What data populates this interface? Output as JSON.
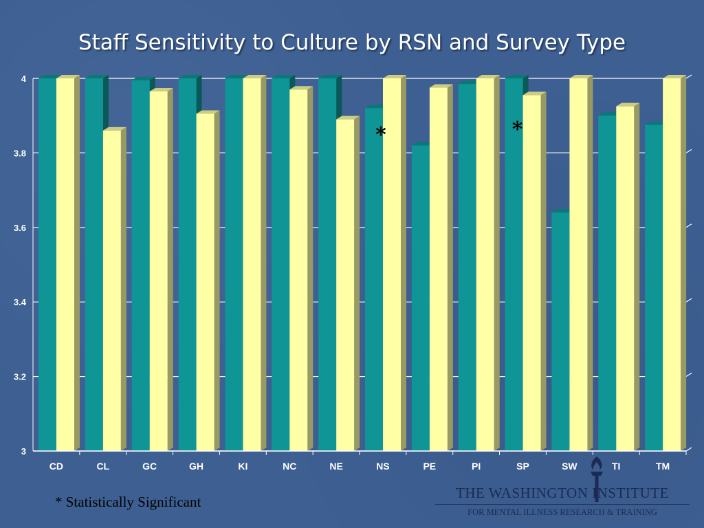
{
  "slide": {
    "title": "Staff Sensitivity to Culture by RSN and Survey Type",
    "footnote": "* Statistically Significant",
    "logo": {
      "line1": "THE WASHINGTON INSTITUTE",
      "line2": "FOR MENTAL ILLNESS RESEARCH & TRAINING",
      "icon": "torch-icon"
    }
  },
  "colors": {
    "background": "#3d5f92",
    "series_a": "#0f9595",
    "series_b": "#ffffa6"
  },
  "chart_data": {
    "type": "bar",
    "title": "Staff Sensitivity to Culture by RSN and Survey Type",
    "xlabel": "",
    "ylabel": "",
    "categories": [
      "CD",
      "CL",
      "GC",
      "GH",
      "KI",
      "NC",
      "NE",
      "NS",
      "PE",
      "PI",
      "SP",
      "SW",
      "TI",
      "TM"
    ],
    "series": [
      {
        "color": "#0f9595",
        "values": [
          4.0,
          4.0,
          3.995,
          4.0,
          4.0,
          4.0,
          4.0,
          3.92,
          3.82,
          3.985,
          4.0,
          3.64,
          3.9,
          3.875
        ]
      },
      {
        "color": "#ffffa6",
        "values": [
          4.0,
          3.86,
          3.965,
          3.905,
          4.0,
          3.97,
          3.89,
          4.0,
          3.975,
          4.0,
          3.955,
          4.0,
          3.925,
          4.0
        ]
      }
    ],
    "ylim": [
      3,
      4
    ],
    "yticks": [
      "3",
      "3.2",
      "3.4",
      "3.6",
      "3.8",
      "4"
    ],
    "grid": true,
    "legend": "none",
    "annotations": [
      {
        "text": "*",
        "category": "NS"
      },
      {
        "text": "*",
        "category": "SP"
      }
    ]
  }
}
